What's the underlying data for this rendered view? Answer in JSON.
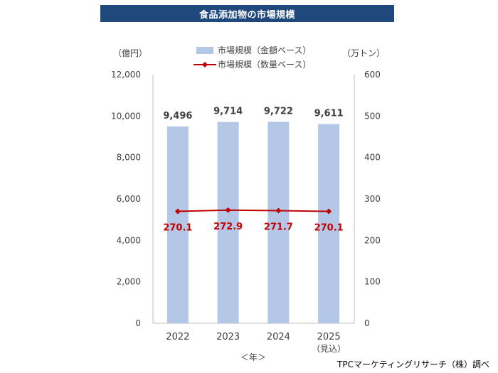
{
  "title": "食品添加物の市場規模",
  "source": "TPCマーケティングリサーチ（株）調べ",
  "chart_data": {
    "type": "bar",
    "categories": [
      "2022",
      "2023",
      "2024",
      "2025"
    ],
    "category_sublabels": [
      "",
      "",
      "",
      "（見込）"
    ],
    "xlabel": "＜年＞",
    "left_axis": {
      "unit_label": "（億円）",
      "ylim": [
        0,
        12000
      ],
      "ticks": [
        "0",
        "2,000",
        "4,000",
        "6,000",
        "8,000",
        "10,000",
        "12,000"
      ]
    },
    "right_axis": {
      "unit_label": "（万トン）",
      "ylim": [
        0,
        600
      ],
      "ticks": [
        "0",
        "100",
        "200",
        "300",
        "400",
        "500",
        "600"
      ]
    },
    "series": [
      {
        "name": "市場規模（金額ベース）",
        "type": "bar",
        "axis": "left",
        "color": "#b4c7e7",
        "values": [
          9496,
          9714,
          9722,
          9611
        ],
        "labels": [
          "9,496",
          "9,714",
          "9,722",
          "9,611"
        ]
      },
      {
        "name": "市場規模（数量ベース）",
        "type": "line",
        "axis": "right",
        "color": "#c00000",
        "values": [
          270.1,
          272.9,
          271.7,
          270.1
        ],
        "labels": [
          "270.1",
          "272.9",
          "271.7",
          "270.1"
        ]
      }
    ],
    "legend_position": "top-center",
    "grid": false
  }
}
